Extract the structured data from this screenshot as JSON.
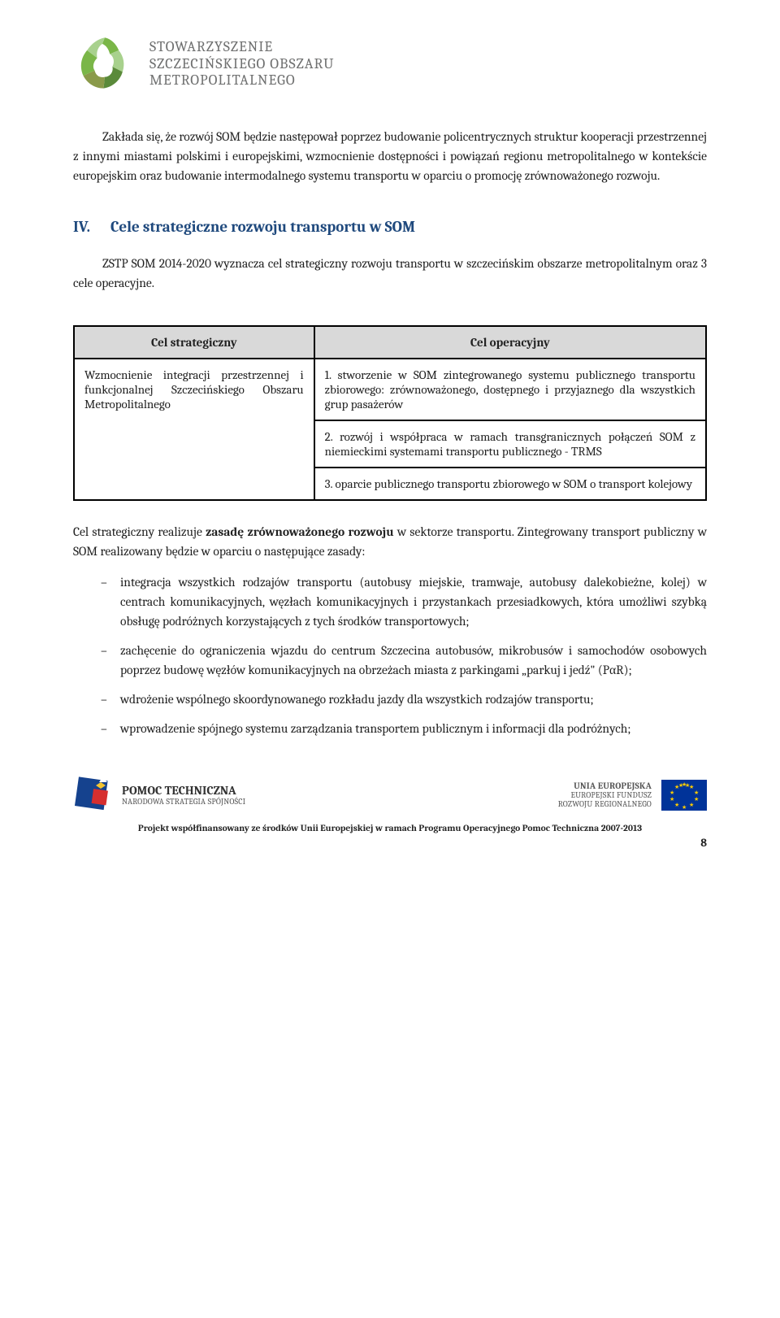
{
  "colors": {
    "heading": "#1f497d",
    "header_text": "#6f7070",
    "table_header_bg": "#d9d9d9",
    "table_border": "#000000",
    "body_text": "#222222",
    "logo_green_dark": "#5a8a3a",
    "logo_green_mid": "#7ab648",
    "logo_green_light": "#a8d18d",
    "logo_olive": "#8a9a4a",
    "eu_blue": "#003399",
    "eu_gold": "#ffcc00",
    "pomoc_blue": "#15428e",
    "pomoc_yellow": "#f4c430",
    "pomoc_red": "#d62f2f"
  },
  "header": {
    "org_line1": "STOWARZYSZENIE",
    "org_line2": "SZCZECIŃSKIEGO OBSZARU",
    "org_line3": "METROPOLITALNEGO"
  },
  "intro_para": "Zakłada się, że rozwój SOM będzie następował poprzez budowanie policentrycznych struktur kooperacji przestrzennej z innymi miastami polskimi i europejskimi, wzmocnienie dostępności i powiązań regionu metropolitalnego w kontekście europejskim oraz budowanie intermodalnego systemu transportu w oparciu o promocję zrównoważonego rozwoju.",
  "section": {
    "roman": "IV.",
    "title": "Cele strategiczne rozwoju transportu w SOM"
  },
  "section_para": "ZSTP SOM 2014-2020 wyznacza cel strategiczny rozwoju transportu w szczecińskim obszarze metropolitalnym oraz 3 cele operacyjne.",
  "table": {
    "col1_header": "Cel strategiczny",
    "col2_header": "Cel operacyjny",
    "left_cell": "Wzmocnienie integracji przestrzennej i funkcjonalnej Szczecińskiego Obszaru Metropolitalnego",
    "right_cells": [
      "1. stworzenie w SOM zintegrowanego systemu publicznego transportu zbiorowego: zrównoważonego, dostępnego i przyjaznego dla wszystkich grup pasażerów",
      "2. rozwój i współpraca w ramach transgranicznych połączeń SOM z niemieckimi systemami transportu publicznego - TRMS",
      "3. oparcie publicznego transportu zbiorowego w SOM o transport kolejowy"
    ]
  },
  "after_table_para": "Cel strategiczny realizuje <b>zasadę zrównoważonego rozwoju</b> w sektorze transportu. Zintegrowany transport publiczny w SOM realizowany będzie w oparciu o następujące zasady:",
  "bullets": [
    "integracja wszystkich rodzajów transportu (autobusy miejskie, tramwaje, autobusy dalekobieżne, kolej) w centrach komunikacyjnych, węzłach komunikacyjnych i przystankach przesiadkowych, która umożliwi szybką obsługę podróżnych korzystających z tych środków transportowych;",
    "zachęcenie do ograniczenia wjazdu do centrum Szczecina autobusów, mikrobusów i samochodów osobowych poprzez budowę węzłów komunikacyjnych na obrzeżach miasta z parkingami „parkuj i jedź\" (PαR);",
    "wdrożenie wspólnego skoordynowanego rozkładu jazdy dla wszystkich rodzajów transportu;",
    "wprowadzenie spójnego systemu zarządzania transportem publicznym i informacji dla podróżnych;"
  ],
  "footer": {
    "left_big": "POMOC TECHNICZNA",
    "left_small": "NARODOWA STRATEGIA SPÓJNOŚCI",
    "right_line1": "UNIA EUROPEJSKA",
    "right_line2": "EUROPEJSKI FUNDUSZ",
    "right_line3": "ROZWOJU REGIONALNEGO",
    "caption": "Projekt współfinansowany ze środków Unii Europejskiej w ramach Programu Operacyjnego Pomoc Techniczna 2007-2013"
  },
  "page_number": "8"
}
